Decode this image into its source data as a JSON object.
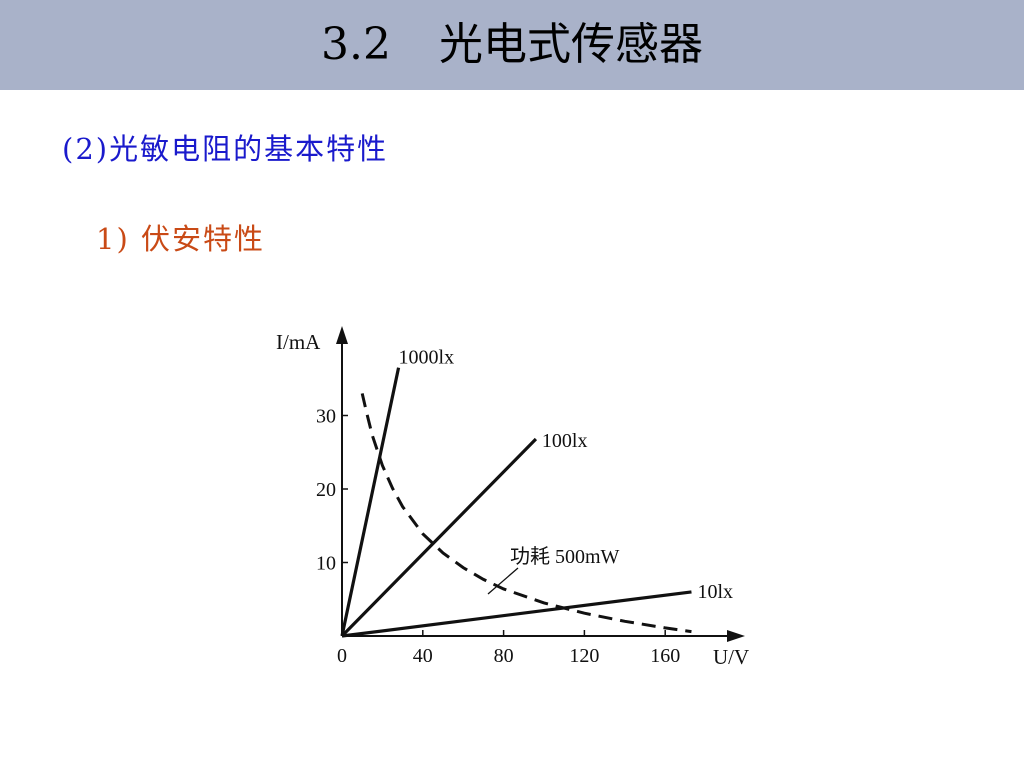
{
  "header": {
    "section_number": "3.2",
    "title": "光电式传感器"
  },
  "section_title": "(2)光敏电阻的基本特性",
  "sub_title": "1) 伏安特性",
  "colors": {
    "header_bg": "#a9b2c9",
    "section_title": "#1a1acc",
    "sub_title": "#c94a16"
  },
  "chart_data": {
    "type": "line",
    "ylabel": "I/mA",
    "xlabel": "U/V",
    "xlim": [
      0,
      180
    ],
    "ylim": [
      0,
      40
    ],
    "x_ticks": [
      0,
      40,
      80,
      120,
      160
    ],
    "y_ticks": [
      10,
      20,
      30
    ],
    "origin_label": "0",
    "series": [
      {
        "name": "1000lx",
        "x": [
          0,
          28
        ],
        "y": [
          0,
          36.5
        ]
      },
      {
        "name": "100lx",
        "x": [
          0,
          96
        ],
        "y": [
          0,
          26.8
        ]
      },
      {
        "name": "10lx",
        "x": [
          0,
          173
        ],
        "y": [
          0,
          6.0
        ]
      }
    ],
    "dashed_curve": {
      "name": "功耗 500mW",
      "x": [
        10,
        12,
        15,
        20,
        25,
        30,
        40,
        50,
        60,
        70,
        80,
        100,
        120,
        140,
        160,
        173
      ],
      "y": [
        33.0,
        30.6,
        27.3,
        23.2,
        20.1,
        17.6,
        13.9,
        11.3,
        9.3,
        7.7,
        6.4,
        4.5,
        3.1,
        2.0,
        1.1,
        0.6
      ]
    }
  }
}
